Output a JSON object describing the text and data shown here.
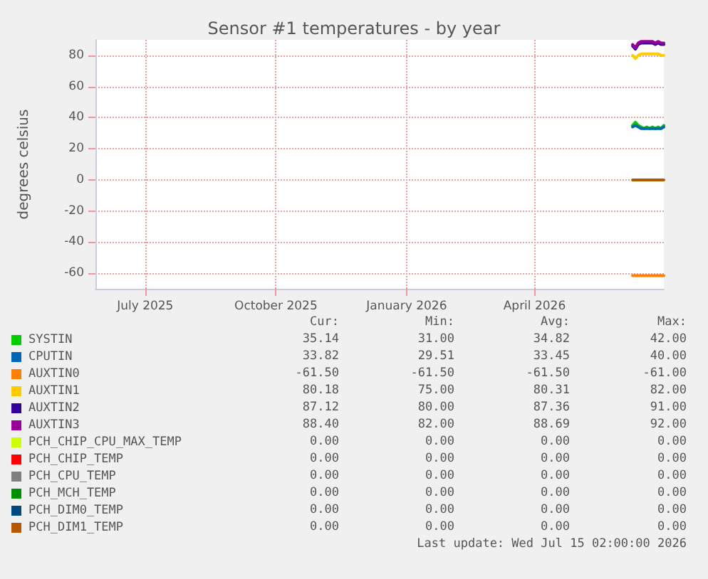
{
  "chart_data": {
    "type": "line",
    "title": "Sensor #1 temperatures - by year",
    "ylabel": "degrees celsius",
    "x": [
      "2026-06-23",
      "2026-06-25",
      "2026-06-27",
      "2026-06-29",
      "2026-07-01",
      "2026-07-03",
      "2026-07-05",
      "2026-07-07",
      "2026-07-09",
      "2026-07-11",
      "2026-07-13",
      "2026-07-15"
    ],
    "xlim": [
      "2025-06-10",
      "2026-07-15"
    ],
    "xticks": [
      {
        "value": "2025-07-15",
        "label": "July 2025"
      },
      {
        "value": "2025-10-15",
        "label": "October 2025"
      },
      {
        "value": "2026-01-15",
        "label": "January 2026"
      },
      {
        "value": "2026-04-15",
        "label": "April 2026"
      }
    ],
    "ylim": [
      -70,
      90
    ],
    "yticks": [
      -60,
      -40,
      -20,
      0,
      20,
      40,
      60,
      80
    ],
    "grid": true,
    "legend": "bottom",
    "marker": "none",
    "line_style": "solid",
    "series": [
      {
        "name": "SYSTIN",
        "color": "#00cc00",
        "values": [
          35,
          37,
          35,
          34,
          33,
          34,
          33,
          34,
          33,
          34,
          33,
          35
        ]
      },
      {
        "name": "CPUTIN",
        "color": "#0066b3",
        "values": [
          34,
          35,
          34,
          33,
          33,
          33,
          33,
          33,
          33,
          33,
          33,
          34
        ]
      },
      {
        "name": "AUXTIN0",
        "color": "#ff8000",
        "values": [
          -61.5,
          -61.5,
          -61.5,
          -61.5,
          -61.5,
          -61.5,
          -61.5,
          -61.5,
          -61.5,
          -61.5,
          -61.5,
          -61.5
        ]
      },
      {
        "name": "AUXTIN1",
        "color": "#ffcc00",
        "values": [
          80,
          78,
          80,
          81,
          81,
          81,
          81,
          81,
          81,
          81,
          80,
          80
        ]
      },
      {
        "name": "AUXTIN2",
        "color": "#330099",
        "values": [
          86,
          84,
          87,
          88,
          88,
          88,
          88,
          88,
          87,
          88,
          87,
          87
        ]
      },
      {
        "name": "AUXTIN3",
        "color": "#990099",
        "values": [
          87,
          85,
          88,
          89,
          89,
          89,
          89,
          89,
          88,
          89,
          88,
          88
        ]
      },
      {
        "name": "PCH_CHIP_CPU_MAX_TEMP",
        "color": "#ccff00",
        "values": [
          null,
          null,
          null,
          null,
          null,
          null,
          null,
          null,
          null,
          null,
          null,
          null
        ]
      },
      {
        "name": "PCH_CHIP_TEMP",
        "color": "#ff0000",
        "values": [
          null,
          null,
          null,
          null,
          null,
          null,
          null,
          null,
          null,
          null,
          null,
          null
        ]
      },
      {
        "name": "PCH_CPU_TEMP",
        "color": "#808080",
        "values": [
          null,
          null,
          null,
          null,
          null,
          null,
          null,
          null,
          null,
          null,
          null,
          null
        ]
      },
      {
        "name": "PCH_MCH_TEMP",
        "color": "#008f00",
        "values": [
          null,
          null,
          null,
          null,
          null,
          null,
          null,
          null,
          null,
          null,
          null,
          null
        ]
      },
      {
        "name": "PCH_DIM0_TEMP",
        "color": "#00487d",
        "values": [
          null,
          null,
          null,
          null,
          null,
          null,
          null,
          null,
          null,
          null,
          null,
          null
        ]
      },
      {
        "name": "PCH_DIM1_TEMP",
        "color": "#b35a00",
        "values": [
          0,
          0,
          0,
          0,
          0,
          0,
          0,
          0,
          0,
          0,
          0,
          0
        ]
      }
    ],
    "annotations": [
      "Cur:",
      "Min:",
      "Avg:",
      "Max:",
      "35.14",
      "31.00",
      "34.82",
      "42.00",
      "33.82",
      "29.51",
      "33.45",
      "40.00",
      "-61.50",
      "-61.50",
      "-61.50",
      "-61.00",
      "80.18",
      "75.00",
      "80.31",
      "82.00",
      "87.12",
      "80.00",
      "87.36",
      "91.00",
      "88.40",
      "82.00",
      "88.69",
      "92.00",
      "0.00",
      "0.00",
      "0.00",
      "0.00",
      "0.00",
      "0.00",
      "0.00",
      "0.00",
      "0.00",
      "0.00",
      "0.00",
      "0.00",
      "0.00",
      "0.00",
      "0.00",
      "0.00",
      "0.00",
      "0.00",
      "0.00",
      "0.00",
      "0.00",
      "0.00",
      "0.00",
      "0.00",
      "Last update: Wed Jul 15 02:00:00 2026"
    ]
  }
}
